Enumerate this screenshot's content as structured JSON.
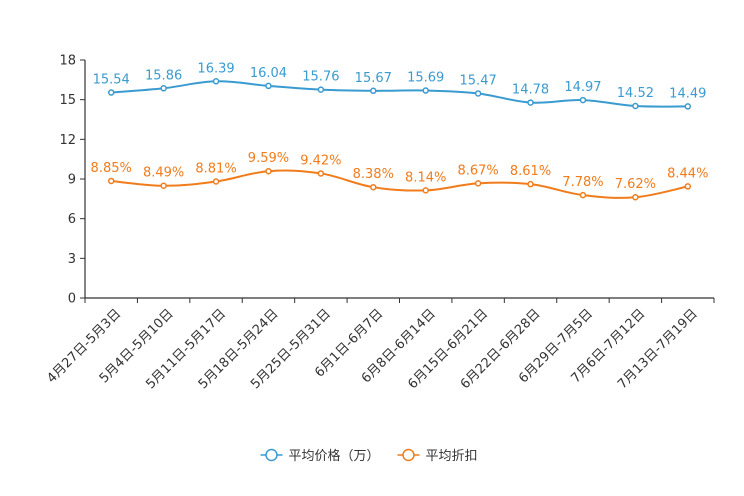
{
  "chart_data": {
    "type": "line",
    "categories": [
      "4月27日-5月3日",
      "5月4日-5月10日",
      "5月11日-5月17日",
      "5月18日-5月24日",
      "5月25日-5月31日",
      "6月1日-6月7日",
      "6月8日-6月14日",
      "6月15日-6月21日",
      "6月22日-6月28日",
      "6月29日-7月5日",
      "7月6日-7月12日",
      "7月13日-7月19日"
    ],
    "series": [
      {
        "name": "平均价格（万）",
        "color": "#3a9bd0",
        "values": [
          15.54,
          15.86,
          16.39,
          16.04,
          15.76,
          15.67,
          15.69,
          15.47,
          14.78,
          14.97,
          14.52,
          14.49
        ],
        "labels": [
          "15.54",
          "15.86",
          "16.39",
          "16.04",
          "15.76",
          "15.67",
          "15.69",
          "15.47",
          "14.78",
          "14.97",
          "14.52",
          "14.49"
        ]
      },
      {
        "name": "平均折扣",
        "color": "#f07c1b",
        "values": [
          8.85,
          8.49,
          8.81,
          9.59,
          9.42,
          8.38,
          8.14,
          8.67,
          8.61,
          7.78,
          7.62,
          8.44
        ],
        "labels": [
          "8.85%",
          "8.49%",
          "8.81%",
          "9.59%",
          "9.42%",
          "8.38%",
          "8.14%",
          "8.67%",
          "8.61%",
          "7.78%",
          "7.62%",
          "8.44%"
        ]
      }
    ],
    "yticks": [
      "0",
      "3",
      "6",
      "9",
      "12",
      "15",
      "18"
    ],
    "ylim": [
      0,
      18
    ],
    "title": "",
    "xlabel": "",
    "ylabel": "",
    "legend": "bottom-center"
  }
}
